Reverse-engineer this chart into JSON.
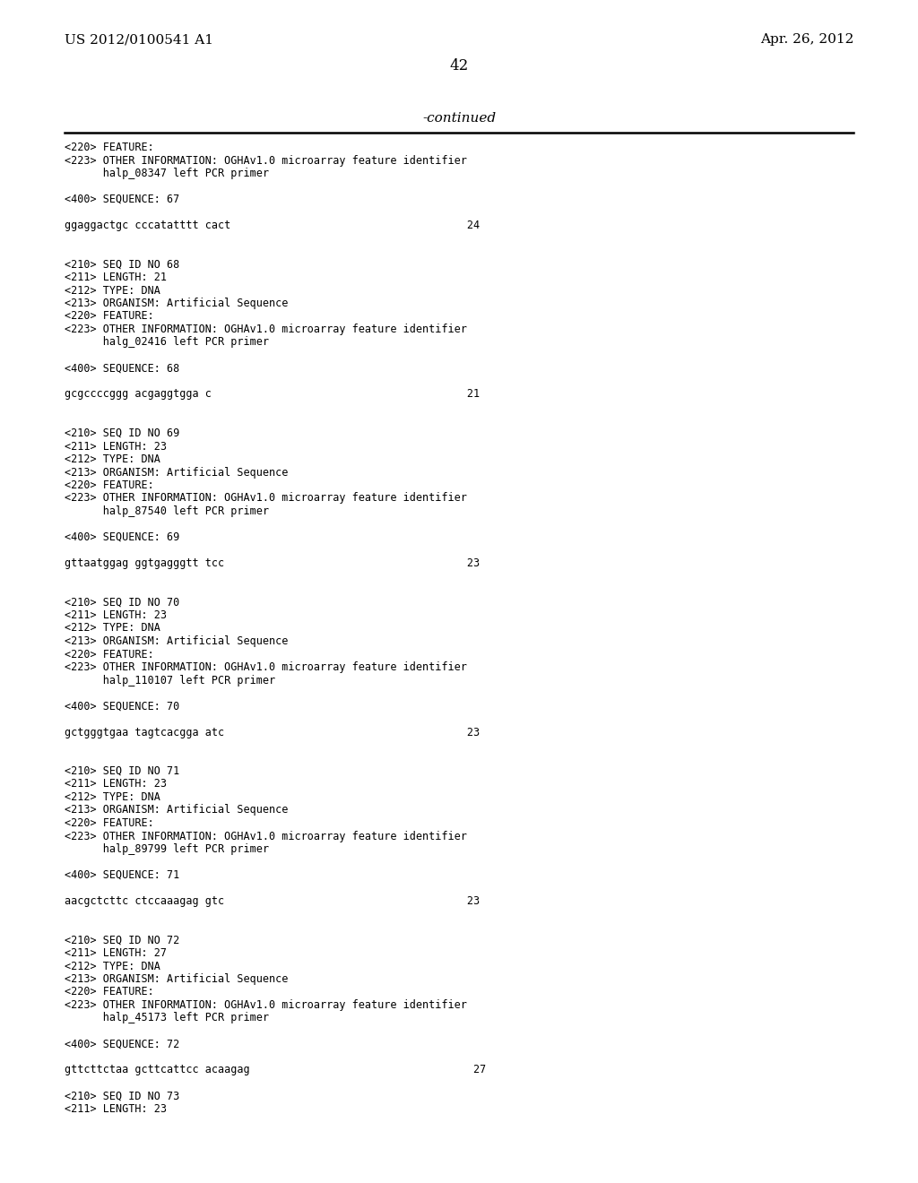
{
  "header_left": "US 2012/0100541 A1",
  "header_right": "Apr. 26, 2012",
  "page_number": "42",
  "continued_label": "-continued",
  "background_color": "#ffffff",
  "text_color": "#000000",
  "header_fontsize": 11,
  "page_num_fontsize": 12,
  "continued_fontsize": 11,
  "mono_font_size": 8.5,
  "lines": [
    {
      "text": "<220> FEATURE:",
      "mono": true,
      "blank": false
    },
    {
      "text": "<223> OTHER INFORMATION: OGHAv1.0 microarray feature identifier",
      "mono": true,
      "blank": false
    },
    {
      "text": "      halp_08347 left PCR primer",
      "mono": true,
      "blank": false
    },
    {
      "text": "",
      "mono": false,
      "blank": true
    },
    {
      "text": "<400> SEQUENCE: 67",
      "mono": true,
      "blank": false
    },
    {
      "text": "",
      "mono": false,
      "blank": true
    },
    {
      "text": "ggaggactgc cccatatttt cact                                     24",
      "mono": true,
      "blank": false
    },
    {
      "text": "",
      "mono": false,
      "blank": true
    },
    {
      "text": "",
      "mono": false,
      "blank": true
    },
    {
      "text": "<210> SEQ ID NO 68",
      "mono": true,
      "blank": false
    },
    {
      "text": "<211> LENGTH: 21",
      "mono": true,
      "blank": false
    },
    {
      "text": "<212> TYPE: DNA",
      "mono": true,
      "blank": false
    },
    {
      "text": "<213> ORGANISM: Artificial Sequence",
      "mono": true,
      "blank": false
    },
    {
      "text": "<220> FEATURE:",
      "mono": true,
      "blank": false
    },
    {
      "text": "<223> OTHER INFORMATION: OGHAv1.0 microarray feature identifier",
      "mono": true,
      "blank": false
    },
    {
      "text": "      halg_02416 left PCR primer",
      "mono": true,
      "blank": false
    },
    {
      "text": "",
      "mono": false,
      "blank": true
    },
    {
      "text": "<400> SEQUENCE: 68",
      "mono": true,
      "blank": false
    },
    {
      "text": "",
      "mono": false,
      "blank": true
    },
    {
      "text": "gcgccccggg acgaggtgga c                                        21",
      "mono": true,
      "blank": false
    },
    {
      "text": "",
      "mono": false,
      "blank": true
    },
    {
      "text": "",
      "mono": false,
      "blank": true
    },
    {
      "text": "<210> SEQ ID NO 69",
      "mono": true,
      "blank": false
    },
    {
      "text": "<211> LENGTH: 23",
      "mono": true,
      "blank": false
    },
    {
      "text": "<212> TYPE: DNA",
      "mono": true,
      "blank": false
    },
    {
      "text": "<213> ORGANISM: Artificial Sequence",
      "mono": true,
      "blank": false
    },
    {
      "text": "<220> FEATURE:",
      "mono": true,
      "blank": false
    },
    {
      "text": "<223> OTHER INFORMATION: OGHAv1.0 microarray feature identifier",
      "mono": true,
      "blank": false
    },
    {
      "text": "      halp_87540 left PCR primer",
      "mono": true,
      "blank": false
    },
    {
      "text": "",
      "mono": false,
      "blank": true
    },
    {
      "text": "<400> SEQUENCE: 69",
      "mono": true,
      "blank": false
    },
    {
      "text": "",
      "mono": false,
      "blank": true
    },
    {
      "text": "gttaatggag ggtgagggtt tcc                                      23",
      "mono": true,
      "blank": false
    },
    {
      "text": "",
      "mono": false,
      "blank": true
    },
    {
      "text": "",
      "mono": false,
      "blank": true
    },
    {
      "text": "<210> SEQ ID NO 70",
      "mono": true,
      "blank": false
    },
    {
      "text": "<211> LENGTH: 23",
      "mono": true,
      "blank": false
    },
    {
      "text": "<212> TYPE: DNA",
      "mono": true,
      "blank": false
    },
    {
      "text": "<213> ORGANISM: Artificial Sequence",
      "mono": true,
      "blank": false
    },
    {
      "text": "<220> FEATURE:",
      "mono": true,
      "blank": false
    },
    {
      "text": "<223> OTHER INFORMATION: OGHAv1.0 microarray feature identifier",
      "mono": true,
      "blank": false
    },
    {
      "text": "      halp_110107 left PCR primer",
      "mono": true,
      "blank": false
    },
    {
      "text": "",
      "mono": false,
      "blank": true
    },
    {
      "text": "<400> SEQUENCE: 70",
      "mono": true,
      "blank": false
    },
    {
      "text": "",
      "mono": false,
      "blank": true
    },
    {
      "text": "gctgggtgaa tagtcacgga atc                                      23",
      "mono": true,
      "blank": false
    },
    {
      "text": "",
      "mono": false,
      "blank": true
    },
    {
      "text": "",
      "mono": false,
      "blank": true
    },
    {
      "text": "<210> SEQ ID NO 71",
      "mono": true,
      "blank": false
    },
    {
      "text": "<211> LENGTH: 23",
      "mono": true,
      "blank": false
    },
    {
      "text": "<212> TYPE: DNA",
      "mono": true,
      "blank": false
    },
    {
      "text": "<213> ORGANISM: Artificial Sequence",
      "mono": true,
      "blank": false
    },
    {
      "text": "<220> FEATURE:",
      "mono": true,
      "blank": false
    },
    {
      "text": "<223> OTHER INFORMATION: OGHAv1.0 microarray feature identifier",
      "mono": true,
      "blank": false
    },
    {
      "text": "      halp_89799 left PCR primer",
      "mono": true,
      "blank": false
    },
    {
      "text": "",
      "mono": false,
      "blank": true
    },
    {
      "text": "<400> SEQUENCE: 71",
      "mono": true,
      "blank": false
    },
    {
      "text": "",
      "mono": false,
      "blank": true
    },
    {
      "text": "aacgctcttc ctccaaagag gtc                                      23",
      "mono": true,
      "blank": false
    },
    {
      "text": "",
      "mono": false,
      "blank": true
    },
    {
      "text": "",
      "mono": false,
      "blank": true
    },
    {
      "text": "<210> SEQ ID NO 72",
      "mono": true,
      "blank": false
    },
    {
      "text": "<211> LENGTH: 27",
      "mono": true,
      "blank": false
    },
    {
      "text": "<212> TYPE: DNA",
      "mono": true,
      "blank": false
    },
    {
      "text": "<213> ORGANISM: Artificial Sequence",
      "mono": true,
      "blank": false
    },
    {
      "text": "<220> FEATURE:",
      "mono": true,
      "blank": false
    },
    {
      "text": "<223> OTHER INFORMATION: OGHAv1.0 microarray feature identifier",
      "mono": true,
      "blank": false
    },
    {
      "text": "      halp_45173 left PCR primer",
      "mono": true,
      "blank": false
    },
    {
      "text": "",
      "mono": false,
      "blank": true
    },
    {
      "text": "<400> SEQUENCE: 72",
      "mono": true,
      "blank": false
    },
    {
      "text": "",
      "mono": false,
      "blank": true
    },
    {
      "text": "gttcttctaa gcttcattcc acaagag                                   27",
      "mono": true,
      "blank": false
    },
    {
      "text": "",
      "mono": false,
      "blank": true
    },
    {
      "text": "<210> SEQ ID NO 73",
      "mono": true,
      "blank": false
    },
    {
      "text": "<211> LENGTH: 23",
      "mono": true,
      "blank": false
    }
  ]
}
